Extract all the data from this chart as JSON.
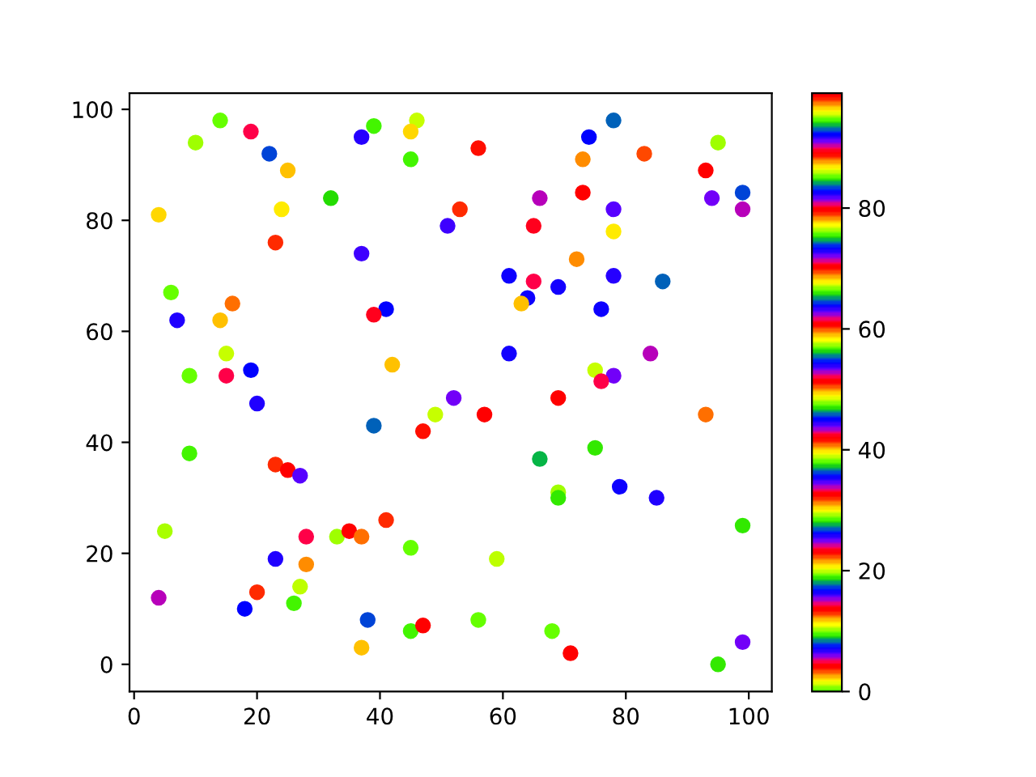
{
  "chart_data": {
    "type": "scatter",
    "marker": "circle",
    "x": [
      14,
      10,
      19,
      22,
      25,
      4,
      24,
      32,
      23,
      37,
      39,
      46,
      45,
      45,
      51,
      37,
      6,
      7,
      16,
      14,
      41,
      39,
      15,
      9,
      15,
      19,
      42,
      20,
      52,
      78,
      74,
      56,
      73,
      83,
      95,
      93,
      99,
      94,
      99,
      73,
      66,
      78,
      53,
      65,
      78,
      72,
      61,
      65,
      69,
      78,
      86,
      64,
      63,
      76,
      61,
      84,
      75,
      78,
      76,
      69,
      39,
      47,
      49,
      9,
      23,
      25,
      27,
      5,
      28,
      33,
      35,
      37,
      41,
      45,
      23,
      28,
      4,
      20,
      27,
      26,
      18,
      38,
      45,
      47,
      37,
      57,
      93,
      66,
      75,
      69,
      69,
      79,
      85,
      99,
      59,
      56,
      68,
      71,
      95,
      99
    ],
    "values": [
      98,
      94,
      96,
      92,
      89,
      81,
      82,
      84,
      76,
      95,
      97,
      98,
      96,
      91,
      79,
      74,
      67,
      62,
      65,
      62,
      64,
      63,
      56,
      52,
      52,
      53,
      54,
      47,
      48,
      98,
      95,
      93,
      91,
      92,
      94,
      89,
      85,
      84,
      82,
      85,
      84,
      82,
      82,
      79,
      78,
      73,
      70,
      69,
      68,
      70,
      69,
      66,
      65,
      64,
      56,
      56,
      53,
      52,
      51,
      48,
      43,
      42,
      45,
      38,
      36,
      35,
      34,
      24,
      23,
      23,
      24,
      23,
      26,
      21,
      19,
      18,
      12,
      13,
      14,
      11,
      10,
      8,
      6,
      7,
      3,
      45,
      45,
      37,
      39,
      31,
      30,
      32,
      30,
      25,
      19,
      8,
      6,
      2,
      0,
      4
    ],
    "cvalues": [
      38.1,
      57.3,
      52.1,
      36.2,
      59.1,
      49.3,
      39.8,
      27.9,
      31.8,
      6.9,
      9.6,
      86.2,
      49.3,
      9.6,
      44.1,
      44.1,
      38.1,
      25.6,
      40.7,
      11.7,
      92.1,
      89.5,
      86.2,
      38.1,
      52.1,
      45.0,
      59.1,
      25.8,
      25.1,
      93.1,
      92.1,
      88.6,
      78.5,
      69.6,
      57.3,
      51.4,
      36.2,
      24.9,
      33.9,
      13.6,
      33.9,
      34.5,
      79.1,
      89.5,
      39.8,
      78.5,
      35.3,
      52.1,
      16.3,
      6.6,
      93.1,
      82.7,
      11.7,
      35.3,
      16.3,
      33.9,
      38.8,
      25.1,
      52.1,
      13.7,
      93.1,
      88.6,
      38.8,
      9.6,
      79.2,
      51.5,
      34.5,
      29.1,
      52.1,
      10.4,
      99.0,
      40.7,
      79.2,
      38.1,
      25.8,
      78.5,
      33.9,
      31.8,
      19.9,
      9.6,
      92.1,
      36.2,
      9.6,
      13.7,
      59.1,
      51.6,
      40.7,
      27.5,
      18.9,
      10.4,
      18.9,
      82.7,
      72.9,
      66.0,
      19.9,
      38.1,
      38.1,
      32.7,
      18.9,
      24.9
    ],
    "xlim": [
      -0.75,
      103.75
    ],
    "ylim": [
      -4.9,
      102.9
    ],
    "xticks": [
      0,
      20,
      40,
      60,
      80,
      100
    ],
    "yticks": [
      0,
      20,
      40,
      60,
      80,
      100
    ],
    "clim": [
      0,
      99
    ],
    "cticks": [
      0,
      20,
      40,
      60,
      80
    ]
  }
}
